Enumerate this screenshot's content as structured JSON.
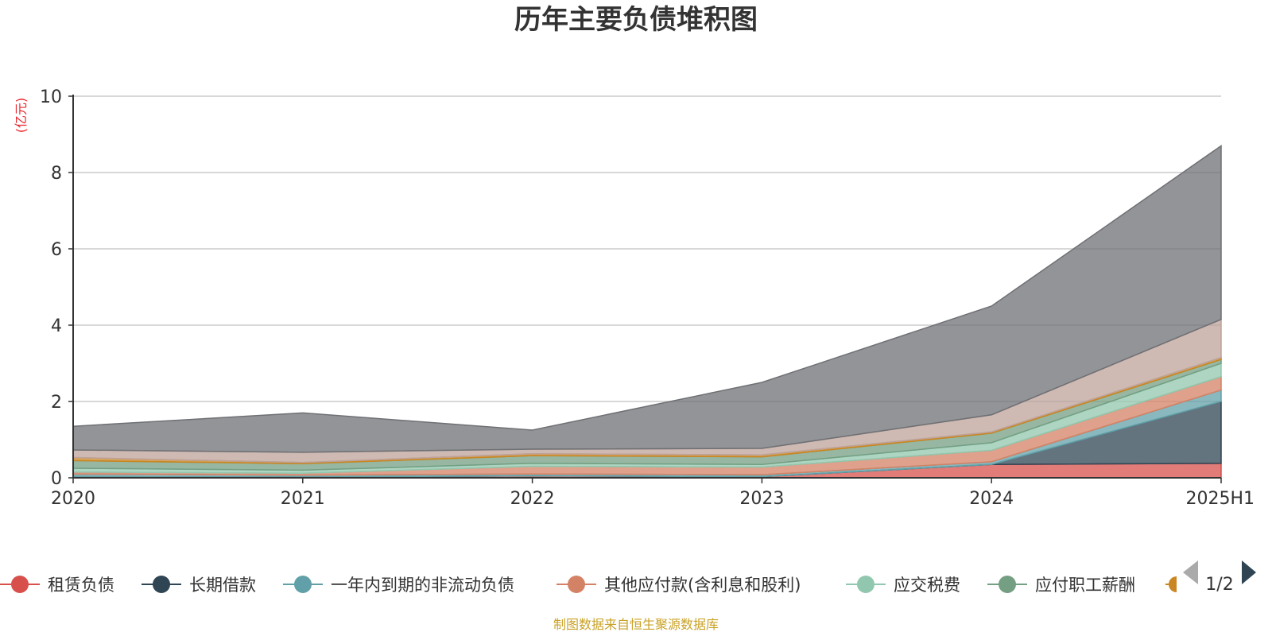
{
  "chart_data": {
    "type": "area",
    "stacked": true,
    "title": "历年主要负债堆积图",
    "unit_label": "(亿元)",
    "x": [
      "2020",
      "2021",
      "2022",
      "2023",
      "2024",
      "2025H1"
    ],
    "ylim": [
      0,
      10
    ],
    "yticks": [
      0,
      2,
      4,
      6,
      8,
      10
    ],
    "grid": true,
    "series": [
      {
        "name": "租赁负债",
        "color": "#d7504b",
        "values": [
          0.03,
          0.02,
          0.05,
          0.03,
          0.35,
          0.38
        ]
      },
      {
        "name": "长期借款",
        "color": "#2f4554",
        "values": [
          0,
          0,
          0,
          0,
          0,
          1.62
        ]
      },
      {
        "name": "一年内到期的非流动负债",
        "color": "#61a0a8",
        "values": [
          0.07,
          0.05,
          0.05,
          0.05,
          0.07,
          0.3
        ]
      },
      {
        "name": "其他应付款(含利息和股利)",
        "color": "#d48265",
        "values": [
          0.05,
          0.05,
          0.2,
          0.2,
          0.3,
          0.35
        ]
      },
      {
        "name": "应交税费",
        "color": "#91c7ae",
        "values": [
          0.1,
          0.08,
          0.08,
          0.07,
          0.2,
          0.35
        ]
      },
      {
        "name": "应付职工薪酬",
        "color": "#749f83",
        "values": [
          0.2,
          0.17,
          0.2,
          0.2,
          0.25,
          0.1
        ]
      },
      {
        "name": "",
        "color": "#ca8622",
        "values": [
          0.08,
          0.03,
          0.05,
          0.05,
          0.03,
          0.05
        ]
      },
      {
        "name": "",
        "color": "#bda29a",
        "values": [
          0.2,
          0.27,
          0.12,
          0.17,
          0.45,
          1.0
        ]
      },
      {
        "name": "",
        "color": "#6e7074",
        "values": [
          0.62,
          1.03,
          0.5,
          1.73,
          2.85,
          4.55
        ]
      }
    ],
    "legend": {
      "placement": "bottom",
      "visible_items": [
        "租赁负债",
        "长期借款",
        "一年内到期的非流动负债",
        "其他应付款(含利息和股利)",
        "应交税费",
        "应付职工薪酬"
      ],
      "page": "1/2"
    },
    "source_note": "制图数据来自恒生聚源数据库"
  }
}
